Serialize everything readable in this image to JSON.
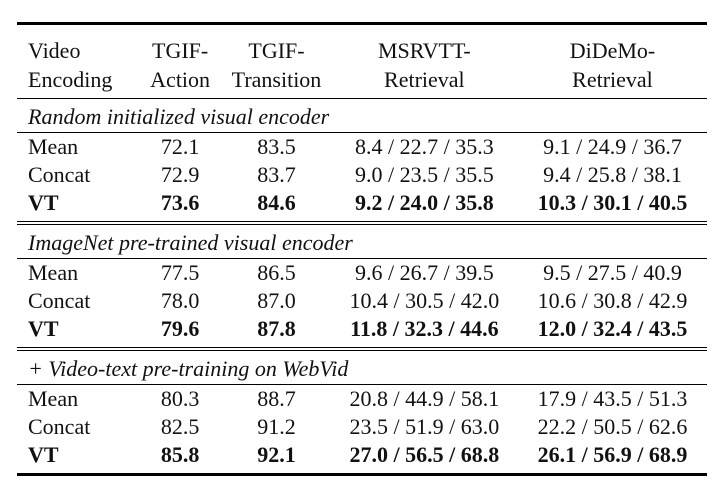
{
  "header": {
    "row1": [
      "Video",
      "TGIF-",
      "TGIF-",
      "MSRVTT-",
      "DiDeMo-"
    ],
    "row2": [
      "Encoding",
      "Action",
      "Transition",
      "Retrieval",
      "Retrieval"
    ]
  },
  "sections": [
    {
      "title": "Random initialized visual encoder",
      "rows": [
        {
          "name": "Mean",
          "tgif_action": "72.1",
          "tgif_transition": "83.5",
          "msrvtt": "8.4 / 22.7 / 35.3",
          "didemo": "9.1 / 24.9 / 36.7"
        },
        {
          "name": "Concat",
          "tgif_action": "72.9",
          "tgif_transition": "83.7",
          "msrvtt": "9.0 / 23.5 / 35.5",
          "didemo": "9.4 / 25.8 / 38.1"
        },
        {
          "name": "VT",
          "tgif_action": "73.6",
          "tgif_transition": "84.6",
          "msrvtt": "9.2 / 24.0 / 35.8",
          "didemo": "10.3 / 30.1 / 40.5"
        }
      ]
    },
    {
      "title": "ImageNet pre-trained visual encoder",
      "rows": [
        {
          "name": "Mean",
          "tgif_action": "77.5",
          "tgif_transition": "86.5",
          "msrvtt": "9.6 / 26.7 / 39.5",
          "didemo": "9.5 / 27.5 / 40.9"
        },
        {
          "name": "Concat",
          "tgif_action": "78.0",
          "tgif_transition": "87.0",
          "msrvtt": "10.4 / 30.5 / 42.0",
          "didemo": "10.6 / 30.8 / 42.9"
        },
        {
          "name": "VT",
          "tgif_action": "79.6",
          "tgif_transition": "87.8",
          "msrvtt": "11.8 / 32.3 / 44.6",
          "didemo": "12.0 / 32.4 / 43.5"
        }
      ]
    },
    {
      "title": "+ Video-text pre-training on WebVid",
      "rows": [
        {
          "name": "Mean",
          "tgif_action": "80.3",
          "tgif_transition": "88.7",
          "msrvtt": "20.8 / 44.9 / 58.1",
          "didemo": "17.9 / 43.5 / 51.3"
        },
        {
          "name": "Concat",
          "tgif_action": "82.5",
          "tgif_transition": "91.2",
          "msrvtt": "23.5 / 51.9 / 63.0",
          "didemo": "22.2 / 50.5 / 62.6"
        },
        {
          "name": "VT",
          "tgif_action": "85.8",
          "tgif_transition": "92.1",
          "msrvtt": "27.0 / 56.5 / 68.8",
          "didemo": "26.1 / 56.9 / 68.9"
        }
      ]
    }
  ]
}
